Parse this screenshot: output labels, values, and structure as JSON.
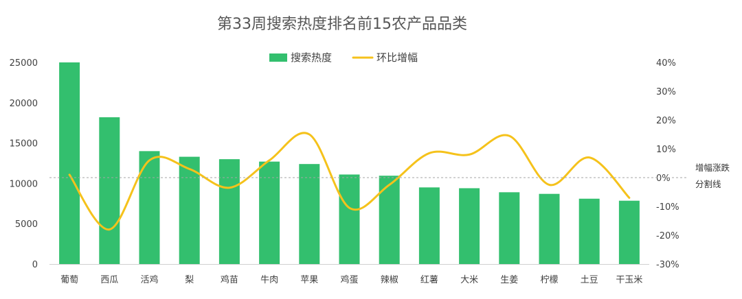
{
  "chart_data": {
    "type": "bar",
    "title": "第33周搜索热度排名前15农产品品类",
    "categories": [
      "葡萄",
      "西瓜",
      "活鸡",
      "梨",
      "鸡苗",
      "牛肉",
      "苹果",
      "鸡蛋",
      "辣椒",
      "红薯",
      "大米",
      "生姜",
      "柠檬",
      "土豆",
      "干玉米"
    ],
    "series": [
      {
        "name": "搜索热度",
        "type": "bar",
        "axis": "left",
        "color": "#33bf6e",
        "values": [
          25000,
          18200,
          14000,
          13300,
          13000,
          12700,
          12400,
          11100,
          10950,
          9500,
          9400,
          8900,
          8700,
          8100,
          7850
        ]
      },
      {
        "name": "环比增幅",
        "type": "line",
        "smooth": true,
        "axis": "right",
        "color": "#f5c21b",
        "values": [
          0.01,
          -0.18,
          0.06,
          0.03,
          -0.035,
          0.06,
          0.15,
          -0.105,
          -0.025,
          0.085,
          0.08,
          0.145,
          -0.025,
          0.07,
          -0.07
        ]
      }
    ],
    "y_left": {
      "min": 0,
      "max": 25000,
      "step": 5000,
      "ticks": [
        "0",
        "5000",
        "10000",
        "15000",
        "20000",
        "25000"
      ]
    },
    "y_right": {
      "min": -0.3,
      "max": 0.4,
      "step": 0.1,
      "ticks": [
        "-30%",
        "-20%",
        "-10%",
        "0%",
        "10%",
        "20%",
        "30%",
        "40%"
      ]
    },
    "zero_line_label": [
      "增幅涨跌",
      "分割线"
    ],
    "legend_position": "top-center",
    "grid": false
  }
}
